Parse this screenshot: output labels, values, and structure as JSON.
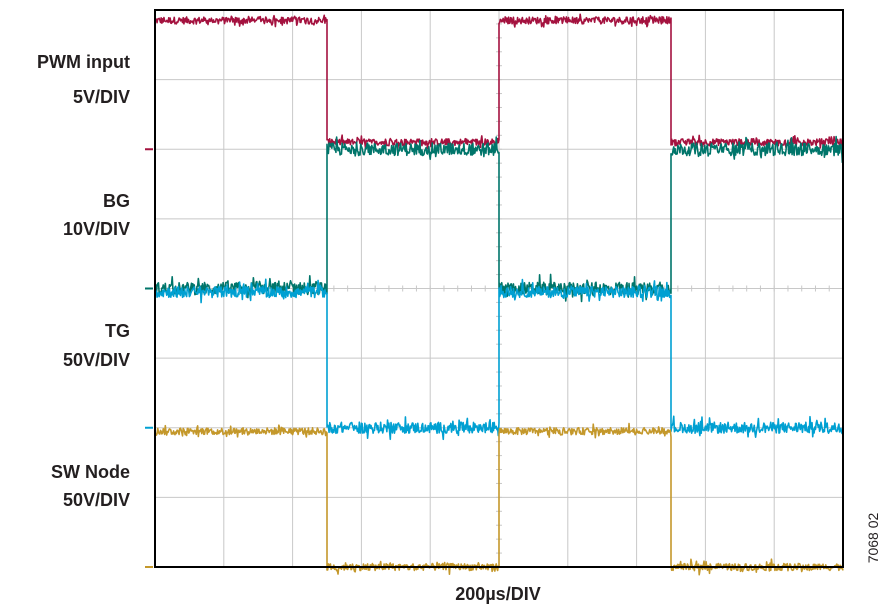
{
  "chart_data": {
    "type": "line",
    "xlabel": "200µs/DIV",
    "figure_id": "7068 02",
    "grid": true,
    "x_divisions": 10,
    "y_divisions": 8,
    "x_unit": "DIV",
    "series": [
      {
        "name": "PWM input",
        "scale": "5V/DIV",
        "color": "#a4123f",
        "ground_div": 6.0,
        "low_div": 6.1,
        "high_div": 7.85,
        "noise_div": 0.05,
        "transitions_div": [
          0,
          5.0,
          6.3,
          7.5
        ],
        "edges": [
          {
            "x": 0.0,
            "state": "high"
          },
          {
            "x": 5.0,
            "state": "low"
          },
          {
            "x": 10.0,
            "state": "high"
          },
          {
            "x": 15.0,
            "state": "low"
          }
        ]
      },
      {
        "name": "BG",
        "scale": "10V/DIV",
        "color": "#00756a",
        "ground_div": 4.0,
        "low_div": 4.0,
        "high_div": 6.0,
        "noise_div": 0.09,
        "edges": [
          {
            "x": 0.0,
            "state": "low"
          },
          {
            "x": 5.0,
            "state": "high"
          },
          {
            "x": 10.0,
            "state": "low"
          },
          {
            "x": 15.0,
            "state": "high"
          }
        ]
      },
      {
        "name": "TG",
        "scale": "50V/DIV",
        "color": "#00a0d2",
        "ground_div": 2.0,
        "low_div": 2.0,
        "high_div": 3.95,
        "noise_div": 0.08,
        "edges": [
          {
            "x": 0.0,
            "state": "high"
          },
          {
            "x": 5.0,
            "state": "low"
          },
          {
            "x": 10.0,
            "state": "high"
          },
          {
            "x": 15.0,
            "state": "low"
          }
        ]
      },
      {
        "name": "SW Node",
        "scale": "50V/DIV",
        "color": "#c4982b",
        "ground_div": 0.0,
        "low_div": 0.0,
        "high_div": 1.95,
        "noise_div": 0.05,
        "edges": [
          {
            "x": 0.0,
            "state": "high"
          },
          {
            "x": 5.0,
            "state": "low"
          },
          {
            "x": 10.0,
            "state": "high"
          },
          {
            "x": 15.0,
            "state": "low"
          }
        ]
      }
    ]
  }
}
